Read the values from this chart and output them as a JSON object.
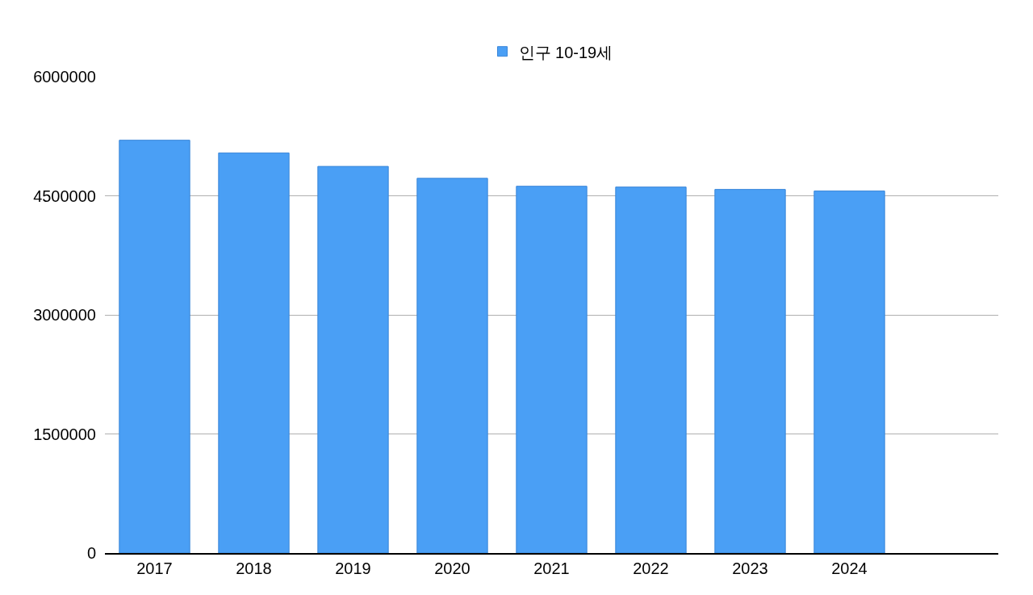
{
  "chart_data": {
    "type": "bar",
    "categories": [
      "2017",
      "2018",
      "2019",
      "2020",
      "2021",
      "2022",
      "2023",
      "2024",
      null
    ],
    "series": [
      {
        "name": "인구 10-19세",
        "color": "#4a9ff5",
        "values": [
          5200000,
          5040000,
          4870000,
          4720000,
          4620000,
          4610000,
          4580000,
          4560000,
          null
        ]
      }
    ],
    "ylim": [
      0,
      6000000
    ],
    "yticks": [
      0,
      1500000,
      3000000,
      4500000,
      6000000
    ],
    "grid": "y",
    "legend": "top"
  }
}
